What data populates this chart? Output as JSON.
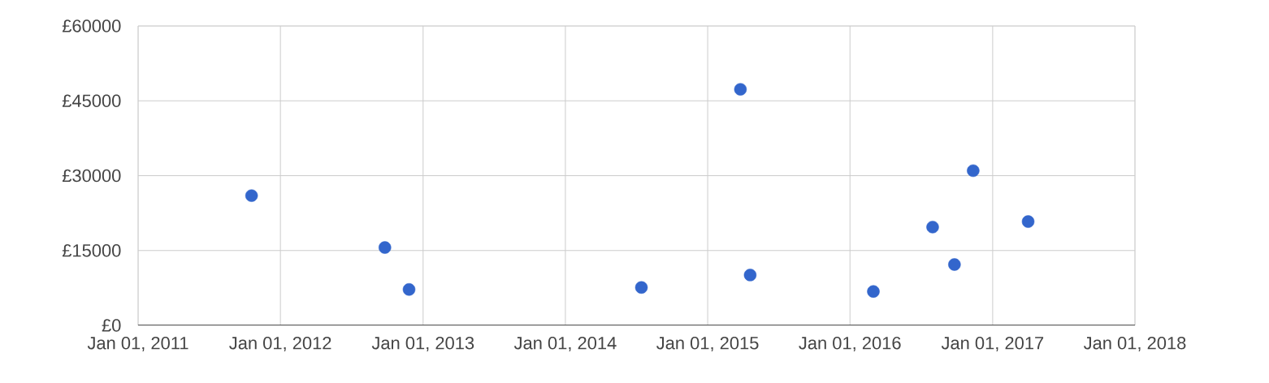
{
  "chart_data": {
    "type": "scatter",
    "x": [
      "2011-10-19",
      "2012-09-25",
      "2012-11-26",
      "2014-07-15",
      "2015-03-26",
      "2015-04-20",
      "2016-03-01",
      "2016-07-31",
      "2016-09-25",
      "2016-11-12",
      "2017-04-02"
    ],
    "values": [
      26000,
      15600,
      7200,
      7600,
      47300,
      10100,
      6800,
      19700,
      12200,
      31000,
      20800
    ],
    "color": "#3366cc",
    "marker": "circle",
    "grid": true,
    "xlim": [
      "2011-01-01",
      "2018-01-01"
    ],
    "xticks": [
      {
        "value": "2011-01-01",
        "label": "Jan 01, 2011"
      },
      {
        "value": "2012-01-01",
        "label": "Jan 01, 2012"
      },
      {
        "value": "2013-01-01",
        "label": "Jan 01, 2013"
      },
      {
        "value": "2014-01-01",
        "label": "Jan 01, 2014"
      },
      {
        "value": "2015-01-01",
        "label": "Jan 01, 2015"
      },
      {
        "value": "2016-01-01",
        "label": "Jan 01, 2016"
      },
      {
        "value": "2017-01-01",
        "label": "Jan 01, 2017"
      },
      {
        "value": "2018-01-01",
        "label": "Jan 01, 2018"
      }
    ],
    "ylim": [
      0,
      60000
    ],
    "yticks": [
      {
        "value": 0,
        "label": "£0"
      },
      {
        "value": 15000,
        "label": "£15000"
      },
      {
        "value": 30000,
        "label": "£30000"
      },
      {
        "value": 45000,
        "label": "£45000"
      },
      {
        "value": 60000,
        "label": "£60000"
      }
    ]
  }
}
